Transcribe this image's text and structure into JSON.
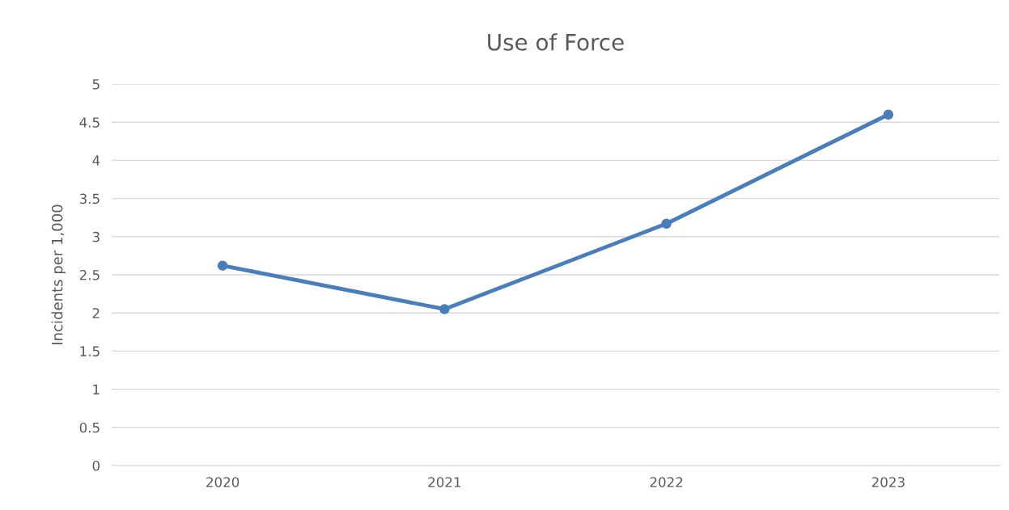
{
  "chart_data": {
    "type": "line",
    "title": "Use of Force",
    "ylabel": "Incidents per 1,000",
    "categories": [
      "2020",
      "2021",
      "2022",
      "2023"
    ],
    "series": [
      {
        "color": "#4a7ebb",
        "values": [
          2.62,
          2.05,
          3.17,
          4.6
        ]
      }
    ],
    "ylim": [
      0,
      5
    ],
    "yticks": [
      0,
      0.5,
      1,
      1.5,
      2,
      2.5,
      3,
      3.5,
      4,
      4.5,
      5
    ],
    "grid": "y",
    "marker": "circle",
    "line_style": "solid"
  }
}
